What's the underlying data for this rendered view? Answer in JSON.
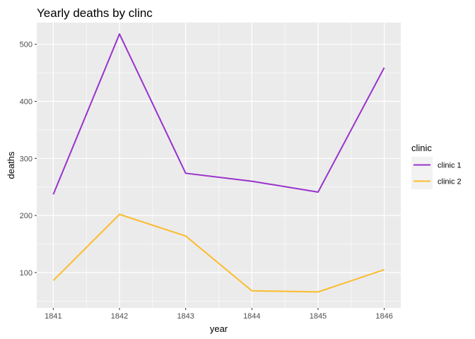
{
  "chart_data": {
    "type": "line",
    "title": "Yearly deaths by clinc",
    "xlabel": "year",
    "ylabel": "deaths",
    "x": [
      1841,
      1842,
      1843,
      1844,
      1845,
      1846
    ],
    "xlim": [
      1840.75,
      1846.25
    ],
    "ylim": [
      38,
      538
    ],
    "yticks": [
      100,
      200,
      300,
      400,
      500
    ],
    "series": [
      {
        "name": "clinic 1",
        "color": "#9932CC",
        "values": [
          237,
          518,
          274,
          260,
          241,
          459
        ]
      },
      {
        "name": "clinic 2",
        "color": "#FBBC2D",
        "values": [
          86,
          202,
          164,
          68,
          66,
          105
        ]
      }
    ],
    "grid": true,
    "legend": {
      "title": "clinic",
      "position": "right"
    }
  }
}
